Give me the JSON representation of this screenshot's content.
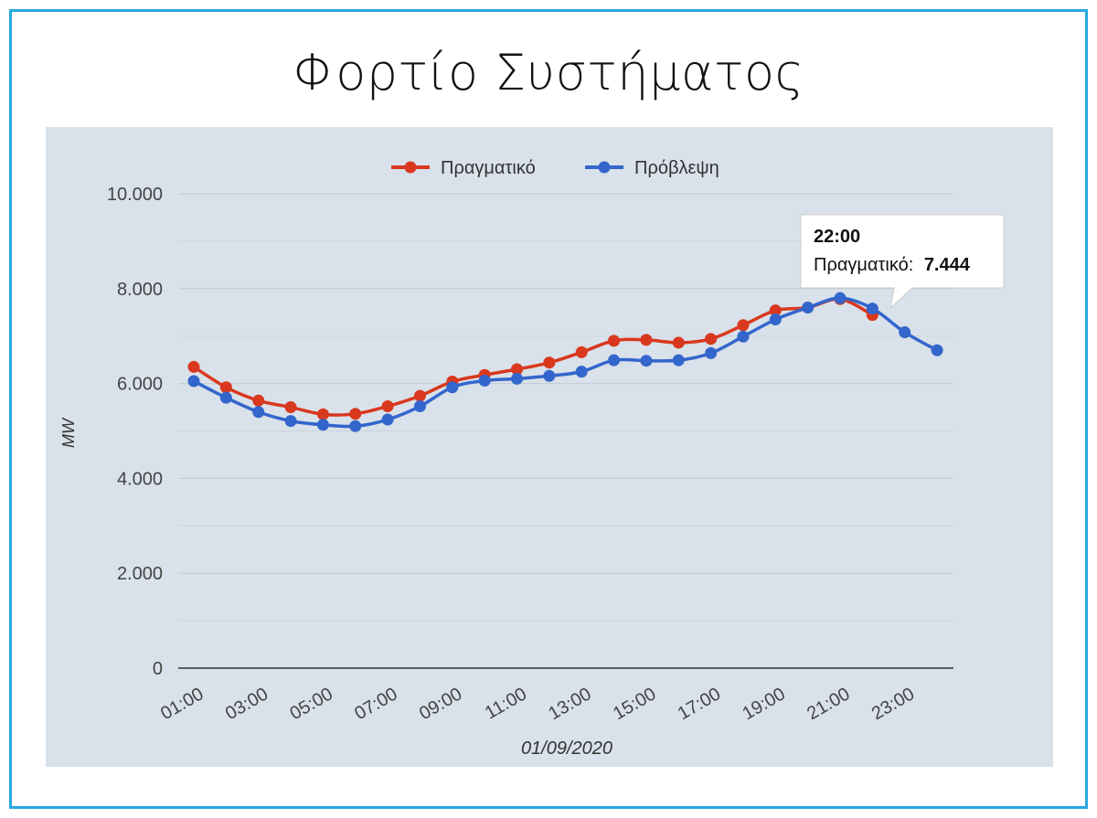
{
  "page": {
    "title": "Φορτίο Συστήματος"
  },
  "colors": {
    "frame": "#29a8e0",
    "plot_background": "#d9e1ea",
    "actual": "#d9381e",
    "forecast": "#3366cc"
  },
  "chart_data": {
    "type": "line",
    "x": [
      "01:00",
      "02:00",
      "03:00",
      "04:00",
      "05:00",
      "06:00",
      "07:00",
      "08:00",
      "09:00",
      "10:00",
      "11:00",
      "12:00",
      "13:00",
      "14:00",
      "15:00",
      "16:00",
      "17:00",
      "18:00",
      "19:00",
      "20:00",
      "21:00",
      "22:00",
      "23:00",
      "24:00"
    ],
    "x_tick_labels": [
      "01:00",
      "03:00",
      "05:00",
      "07:00",
      "09:00",
      "11:00",
      "13:00",
      "15:00",
      "17:00",
      "19:00",
      "21:00",
      "23:00"
    ],
    "xlabel": "01/09/2020",
    "ylabel": "MW",
    "ylim": [
      0,
      10000
    ],
    "y_ticks": [
      0,
      2000,
      4000,
      6000,
      8000,
      10000
    ],
    "y_tick_labels": [
      "0",
      "2.000",
      "4.000",
      "6.000",
      "8.000",
      "10.000"
    ],
    "grid": true,
    "legend_position": "top-center",
    "series": [
      {
        "name": "Πραγματικό",
        "color": "#d9381e",
        "values": [
          6350,
          5920,
          5640,
          5500,
          5350,
          5360,
          5520,
          5740,
          6040,
          6180,
          6300,
          6440,
          6660,
          6900,
          6920,
          6860,
          6940,
          7230,
          7540,
          7600,
          7780,
          7444,
          null,
          null
        ]
      },
      {
        "name": "Πρόβλεψη",
        "color": "#3366cc",
        "values": [
          6050,
          5700,
          5400,
          5210,
          5130,
          5100,
          5240,
          5520,
          5920,
          6060,
          6100,
          6160,
          6250,
          6490,
          6480,
          6490,
          6640,
          6990,
          7350,
          7600,
          7800,
          7580,
          7080,
          6700
        ]
      }
    ],
    "tooltip": {
      "title": "22:00",
      "series_label": "Πραγματικό:",
      "value": "7.444"
    }
  }
}
